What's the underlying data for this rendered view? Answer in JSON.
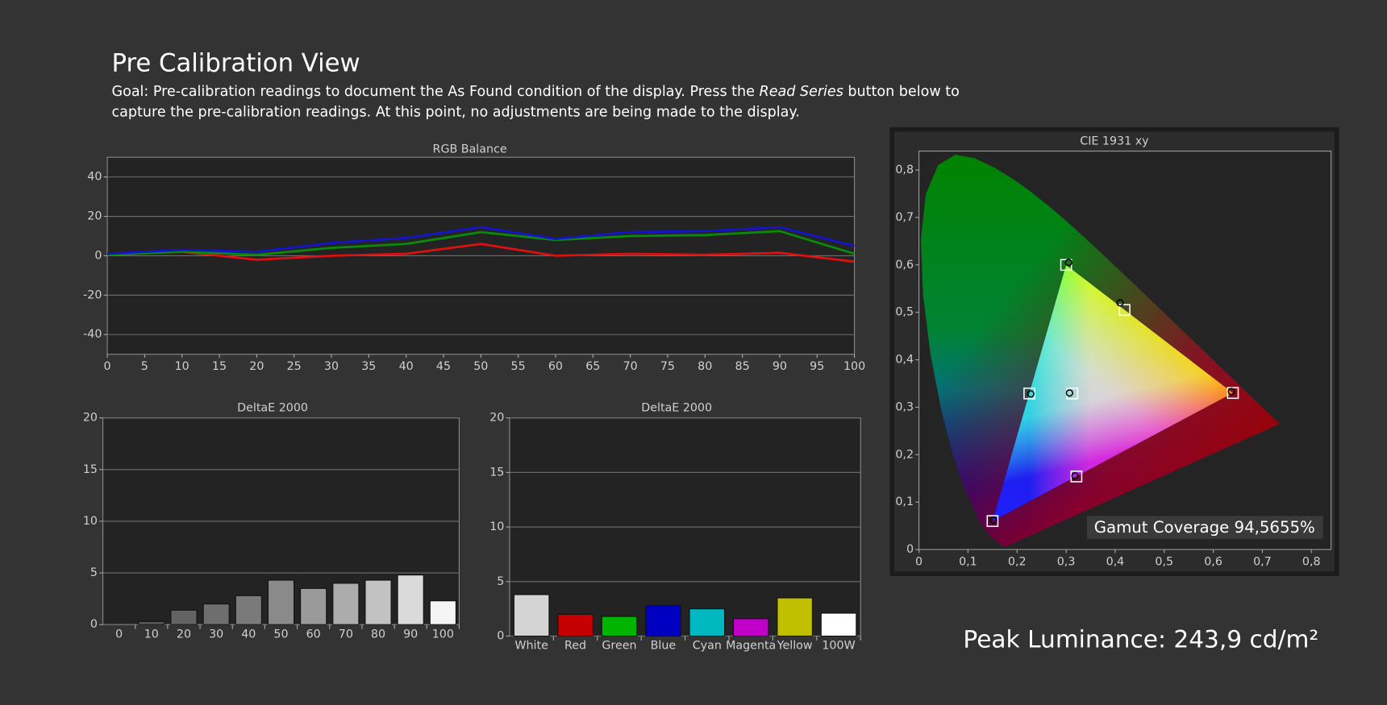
{
  "header": {
    "title": "Pre Calibration View",
    "goal": [
      [
        "Goal: Pre-calibration readings to document the As Found condition of the display. Press the ",
        "Read Series",
        " button below to"
      ],
      [
        "capture the pre-calibration readings. At this point, no adjustments are being made to the display."
      ]
    ]
  },
  "chart_data": [
    {
      "type": "line",
      "title": "RGB Balance",
      "x": [
        0,
        10,
        20,
        30,
        40,
        50,
        60,
        70,
        80,
        90,
        100
      ],
      "xlim": [
        0,
        100
      ],
      "xticks": [
        0,
        5,
        10,
        15,
        20,
        25,
        30,
        35,
        40,
        45,
        50,
        55,
        60,
        65,
        70,
        75,
        80,
        85,
        90,
        95,
        100
      ],
      "ylim": [
        -50,
        50
      ],
      "yticks": [
        40,
        20,
        0,
        -20,
        -40
      ],
      "grid": true,
      "series": [
        {
          "color": "#e01010",
          "values": [
            0.5,
            2,
            -2,
            0,
            1,
            6,
            0,
            1,
            0.5,
            1.5,
            -3
          ]
        },
        {
          "color": "#0a8a0a",
          "values": [
            0.5,
            2,
            0.5,
            4,
            6,
            12,
            8,
            10,
            10.5,
            12.5,
            1
          ]
        },
        {
          "color": "#1414d0",
          "values": [
            1,
            3,
            2,
            6.5,
            9,
            14.5,
            8.5,
            12,
            12.5,
            14.5,
            5
          ]
        }
      ]
    },
    {
      "type": "bar",
      "title": "DeltaE 2000",
      "categories": [
        "0",
        "10",
        "20",
        "30",
        "40",
        "50",
        "60",
        "70",
        "80",
        "90",
        "100"
      ],
      "values": [
        0,
        0.3,
        1.4,
        2.0,
        2.8,
        4.3,
        3.5,
        4.0,
        4.3,
        4.8,
        2.3
      ],
      "colors": [
        "#505050",
        "#585858",
        "#636363",
        "#6e6e6e",
        "#7a7a7a",
        "#8a8a8a",
        "#9a9a9a",
        "#acacac",
        "#c2c2c2",
        "#dadada",
        "#f5f5f5"
      ],
      "ylim": [
        0,
        20
      ],
      "yticks": [
        0,
        5,
        10,
        15,
        20
      ],
      "grid": true
    },
    {
      "type": "bar",
      "title": "DeltaE 2000",
      "categories": [
        "White",
        "Red",
        "Green",
        "Blue",
        "Cyan",
        "Magenta",
        "Yellow",
        "100W"
      ],
      "values": [
        3.8,
        2.0,
        1.8,
        2.8,
        2.5,
        1.6,
        3.5,
        2.1
      ],
      "colors": [
        "#d4d4d4",
        "#c40000",
        "#00b400",
        "#0000c0",
        "#00b8c0",
        "#c000c8",
        "#c0c000",
        "#ffffff"
      ],
      "ylim": [
        0,
        20
      ],
      "yticks": [
        0,
        5,
        10,
        15,
        20
      ],
      "grid": true
    },
    {
      "type": "scatter",
      "title": "CIE 1931 xy",
      "xlim": [
        0,
        0.84
      ],
      "ylim": [
        0,
        0.84
      ],
      "xticks": [
        0,
        {
          "value": 0.1,
          "label": "0,1"
        },
        {
          "value": 0.2,
          "label": "0,2"
        },
        {
          "value": 0.3,
          "label": "0,3"
        },
        {
          "value": 0.4,
          "label": "0,4"
        },
        {
          "value": 0.5,
          "label": "0,5"
        },
        {
          "value": 0.6,
          "label": "0,6"
        },
        {
          "value": 0.7,
          "label": "0,7"
        },
        {
          "value": 0.8,
          "label": "0,8"
        }
      ],
      "yticks": [
        0,
        {
          "value": 0.1,
          "label": "0,1"
        },
        {
          "value": 0.2,
          "label": "0,2"
        },
        {
          "value": 0.3,
          "label": "0,3"
        },
        {
          "value": 0.4,
          "label": "0,4"
        },
        {
          "value": 0.5,
          "label": "0,5"
        },
        {
          "value": 0.6,
          "label": "0,6"
        },
        {
          "value": 0.7,
          "label": "0,7"
        },
        {
          "value": 0.8,
          "label": "0,8"
        }
      ],
      "grid": false,
      "annotation": "Gamut Coverage 94,5655%",
      "series": [
        {
          "marker": "square",
          "color": "#ffffff",
          "x": [
            0.64,
            0.3,
            0.15,
            0.225,
            0.321,
            0.419,
            0.3127
          ],
          "y": [
            0.33,
            0.6,
            0.06,
            0.329,
            0.154,
            0.505,
            0.329
          ]
        },
        {
          "marker": "circle",
          "color": "#000000",
          "x": [
            0.637,
            0.305,
            0.152,
            0.228,
            0.318,
            0.41,
            0.307
          ],
          "y": [
            0.333,
            0.605,
            0.062,
            0.328,
            0.155,
            0.52,
            0.33
          ]
        }
      ]
    }
  ],
  "peak_luminance": "Peak Luminance: 243,9 cd/m²"
}
